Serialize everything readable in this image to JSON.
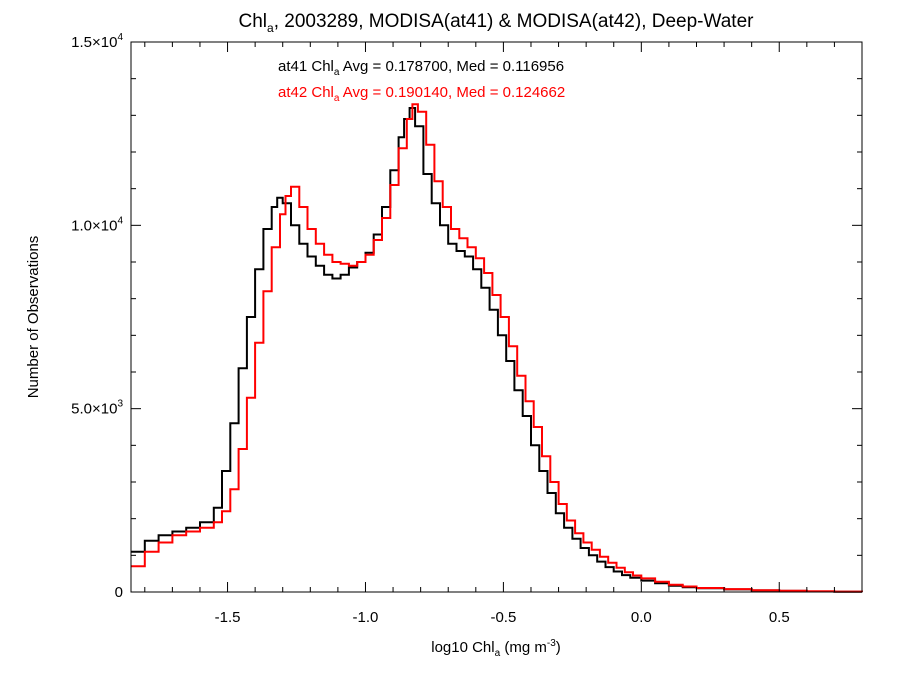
{
  "chart_data": {
    "type": "line",
    "title": {
      "prefix": "Chl",
      "sub": "a",
      "rest": ", 2003289, MODISA(at41) & MODISA(at42), Deep-Water"
    },
    "xlabel": {
      "prefix": "log10 Chl",
      "sub": "a",
      "mid": " (mg m",
      "sup": "-3",
      "suffix": ")"
    },
    "ylabel": "Number of Observations",
    "xlim": [
      -1.85,
      0.8
    ],
    "ylim": [
      0,
      15000
    ],
    "x_ticks": [
      {
        "value": -1.5,
        "label": "-1.5"
      },
      {
        "value": -1.0,
        "label": "-1.0"
      },
      {
        "value": -0.5,
        "label": "-0.5"
      },
      {
        "value": 0.0,
        "label": "0.0"
      },
      {
        "value": 0.5,
        "label": "0.5"
      }
    ],
    "y_ticks": [
      {
        "value": 0,
        "mant": "0",
        "exp": ""
      },
      {
        "value": 5000,
        "mant": "5.0×10",
        "exp": "3"
      },
      {
        "value": 10000,
        "mant": "1.0×10",
        "exp": "4"
      },
      {
        "value": 15000,
        "mant": "1.5×10",
        "exp": "4"
      }
    ],
    "annotations": [
      {
        "name": "at41",
        "color": "#000000",
        "prefix": "at41 Chl",
        "sub": "a",
        "rest": " Avg = 0.178700, Med = 0.116956"
      },
      {
        "name": "at42",
        "color": "#ff0000",
        "prefix": "at42 Chl",
        "sub": "a",
        "rest": " Avg = 0.190140, Med = 0.124662"
      }
    ],
    "series": [
      {
        "name": "at41",
        "color": "#000000",
        "points": [
          [
            -1.85,
            1100
          ],
          [
            -1.8,
            1400
          ],
          [
            -1.75,
            1550
          ],
          [
            -1.7,
            1650
          ],
          [
            -1.65,
            1750
          ],
          [
            -1.6,
            1900
          ],
          [
            -1.55,
            2300
          ],
          [
            -1.52,
            3300
          ],
          [
            -1.49,
            4600
          ],
          [
            -1.46,
            6100
          ],
          [
            -1.43,
            7500
          ],
          [
            -1.4,
            8800
          ],
          [
            -1.37,
            9900
          ],
          [
            -1.34,
            10500
          ],
          [
            -1.32,
            10750
          ],
          [
            -1.3,
            10600
          ],
          [
            -1.27,
            10000
          ],
          [
            -1.24,
            9500
          ],
          [
            -1.21,
            9150
          ],
          [
            -1.18,
            8900
          ],
          [
            -1.15,
            8650
          ],
          [
            -1.12,
            8550
          ],
          [
            -1.09,
            8650
          ],
          [
            -1.06,
            8850
          ],
          [
            -1.03,
            9000
          ],
          [
            -1.0,
            9250
          ],
          [
            -0.97,
            9750
          ],
          [
            -0.94,
            10500
          ],
          [
            -0.91,
            11500
          ],
          [
            -0.88,
            12400
          ],
          [
            -0.86,
            12900
          ],
          [
            -0.84,
            13200
          ],
          [
            -0.82,
            12700
          ],
          [
            -0.79,
            11400
          ],
          [
            -0.76,
            10600
          ],
          [
            -0.73,
            10000
          ],
          [
            -0.7,
            9500
          ],
          [
            -0.67,
            9300
          ],
          [
            -0.64,
            9150
          ],
          [
            -0.61,
            8800
          ],
          [
            -0.58,
            8300
          ],
          [
            -0.55,
            7700
          ],
          [
            -0.52,
            7000
          ],
          [
            -0.49,
            6300
          ],
          [
            -0.46,
            5500
          ],
          [
            -0.43,
            4800
          ],
          [
            -0.4,
            4000
          ],
          [
            -0.37,
            3300
          ],
          [
            -0.34,
            2700
          ],
          [
            -0.31,
            2150
          ],
          [
            -0.28,
            1750
          ],
          [
            -0.25,
            1450
          ],
          [
            -0.22,
            1200
          ],
          [
            -0.19,
            1000
          ],
          [
            -0.16,
            830
          ],
          [
            -0.13,
            680
          ],
          [
            -0.1,
            560
          ],
          [
            -0.07,
            460
          ],
          [
            -0.04,
            390
          ],
          [
            0.0,
            310
          ],
          [
            0.05,
            240
          ],
          [
            0.1,
            170
          ],
          [
            0.15,
            130
          ],
          [
            0.2,
            100
          ],
          [
            0.3,
            70
          ],
          [
            0.4,
            45
          ],
          [
            0.5,
            30
          ],
          [
            0.6,
            15
          ],
          [
            0.7,
            8
          ],
          [
            0.8,
            5
          ]
        ]
      },
      {
        "name": "at42",
        "color": "#ff0000",
        "points": [
          [
            -1.85,
            700
          ],
          [
            -1.8,
            1100
          ],
          [
            -1.75,
            1350
          ],
          [
            -1.7,
            1550
          ],
          [
            -1.65,
            1650
          ],
          [
            -1.6,
            1750
          ],
          [
            -1.55,
            1900
          ],
          [
            -1.52,
            2200
          ],
          [
            -1.49,
            2800
          ],
          [
            -1.46,
            3900
          ],
          [
            -1.43,
            5300
          ],
          [
            -1.4,
            6800
          ],
          [
            -1.37,
            8200
          ],
          [
            -1.34,
            9400
          ],
          [
            -1.31,
            10300
          ],
          [
            -1.29,
            10800
          ],
          [
            -1.27,
            11050
          ],
          [
            -1.24,
            10500
          ],
          [
            -1.21,
            9900
          ],
          [
            -1.18,
            9500
          ],
          [
            -1.15,
            9200
          ],
          [
            -1.12,
            9000
          ],
          [
            -1.09,
            8950
          ],
          [
            -1.06,
            8900
          ],
          [
            -1.03,
            9000
          ],
          [
            -1.0,
            9200
          ],
          [
            -0.97,
            9600
          ],
          [
            -0.94,
            10200
          ],
          [
            -0.91,
            11100
          ],
          [
            -0.88,
            12100
          ],
          [
            -0.85,
            12900
          ],
          [
            -0.83,
            13300
          ],
          [
            -0.81,
            13100
          ],
          [
            -0.78,
            12200
          ],
          [
            -0.75,
            11200
          ],
          [
            -0.72,
            10500
          ],
          [
            -0.69,
            9900
          ],
          [
            -0.66,
            9650
          ],
          [
            -0.63,
            9400
          ],
          [
            -0.6,
            9100
          ],
          [
            -0.57,
            8700
          ],
          [
            -0.54,
            8100
          ],
          [
            -0.51,
            7500
          ],
          [
            -0.48,
            6700
          ],
          [
            -0.45,
            5900
          ],
          [
            -0.42,
            5200
          ],
          [
            -0.39,
            4500
          ],
          [
            -0.36,
            3700
          ],
          [
            -0.33,
            3000
          ],
          [
            -0.3,
            2400
          ],
          [
            -0.27,
            1950
          ],
          [
            -0.24,
            1600
          ],
          [
            -0.21,
            1350
          ],
          [
            -0.18,
            1150
          ],
          [
            -0.15,
            960
          ],
          [
            -0.12,
            800
          ],
          [
            -0.09,
            660
          ],
          [
            -0.06,
            540
          ],
          [
            -0.03,
            450
          ],
          [
            0.0,
            370
          ],
          [
            0.05,
            280
          ],
          [
            0.1,
            200
          ],
          [
            0.15,
            150
          ],
          [
            0.2,
            110
          ],
          [
            0.3,
            80
          ],
          [
            0.4,
            50
          ],
          [
            0.5,
            35
          ],
          [
            0.6,
            18
          ],
          [
            0.7,
            10
          ],
          [
            0.8,
            6
          ]
        ]
      }
    ]
  }
}
